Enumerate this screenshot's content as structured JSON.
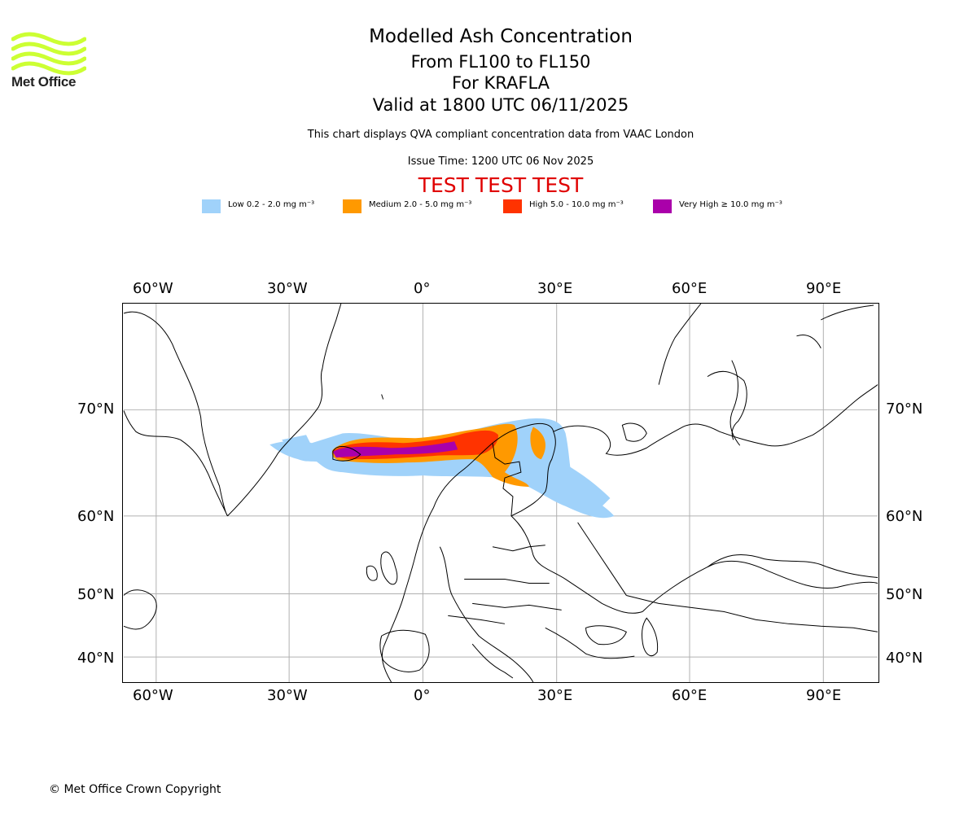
{
  "logo": {
    "text": "Met Office",
    "color": "#ccff33"
  },
  "header": {
    "title": "Modelled Ash Concentration",
    "levels": "From FL100 to FL150",
    "volcano": "For KRAFLA",
    "valid": "Valid at 1800 UTC 06/11/2025",
    "description": "This chart displays QVA compliant concentration data from VAAC London",
    "issue_time": "Issue Time: 1200 UTC 06 Nov 2025",
    "test_banner": "TEST TEST TEST"
  },
  "legend": [
    {
      "label": "Low 0.2 - 2.0 mg m⁻³",
      "color": "#a0d2fa"
    },
    {
      "label": "Medium 2.0 - 5.0 mg m⁻³",
      "color": "#ff9900"
    },
    {
      "label": "High 5.0 - 10.0 mg m⁻³",
      "color": "#ff3300"
    },
    {
      "label": "Very High ≥ 10.0 mg m⁻³",
      "color": "#aa00aa"
    }
  ],
  "axes": {
    "lon_labels": [
      "60°W",
      "30°W",
      "0°",
      "30°E",
      "60°E",
      "90°E"
    ],
    "lat_labels": [
      "70°N",
      "60°N",
      "50°N",
      "40°N"
    ]
  },
  "map": {
    "projection": "polar-stereographic-like",
    "gridlines": true,
    "grid_color": "#b0b0b0"
  },
  "footer": {
    "copyright": "© Met Office Crown Copyright"
  }
}
